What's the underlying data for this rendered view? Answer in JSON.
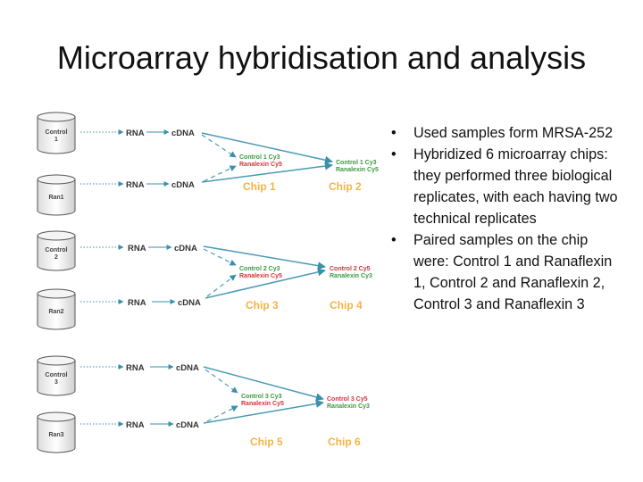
{
  "slide": {
    "title": "Microarray hybridisation and analysis",
    "bullets": [
      "Used samples form MRSA-252",
      "Hybridized 6 microarray chips: they performed three biological replicates, with each having two technical replicates",
      "Paired samples on the chip were: Control 1 and Ranaflexin 1, Control 2 and Ranaflexin 2, Control 3 and Ranaflexin 3"
    ],
    "bullet_glyph": "•"
  },
  "diagram": {
    "samples": [
      {
        "line1": "Control",
        "line2": "1"
      },
      {
        "line1": "Ran1",
        "line2": ""
      },
      {
        "line1": "Control",
        "line2": "2"
      },
      {
        "line1": "Ran2",
        "line2": ""
      },
      {
        "line1": "Control",
        "line2": "3"
      },
      {
        "line1": "Ran3",
        "line2": ""
      }
    ],
    "rna_label": "RNA",
    "cdna_label": "cDNA",
    "groups": [
      {
        "chip_a": "Chip 1",
        "chip_b": "Chip 2",
        "left_line1": "Control 1 Cy3",
        "left_line2": "Ranalexin Cy5",
        "right_line1": "Control 1 Cy3",
        "right_line2": "Ranalexin Cy5"
      },
      {
        "chip_a": "Chip 3",
        "chip_b": "Chip 4",
        "left_line1": "Control 2 Cy3",
        "left_line2": "Ranalexin Cy5",
        "right_line1": "Control 2 Cy5",
        "right_line2": "Ranalexin Cy3"
      },
      {
        "chip_a": "Chip 5",
        "chip_b": "Chip 6",
        "left_line1": "Control 3 Cy3",
        "left_line2": "Ranalexin Cy5",
        "right_line1": "Control 3 Cy5",
        "right_line2": "Ranalexin Cy3"
      }
    ],
    "colors": {
      "arrow": "#4a9bb5",
      "chip": "#f5b445",
      "control_text": "#3d9a41",
      "ranalexin_text": "#d6343a",
      "cylinder_stroke": "#555555"
    }
  }
}
